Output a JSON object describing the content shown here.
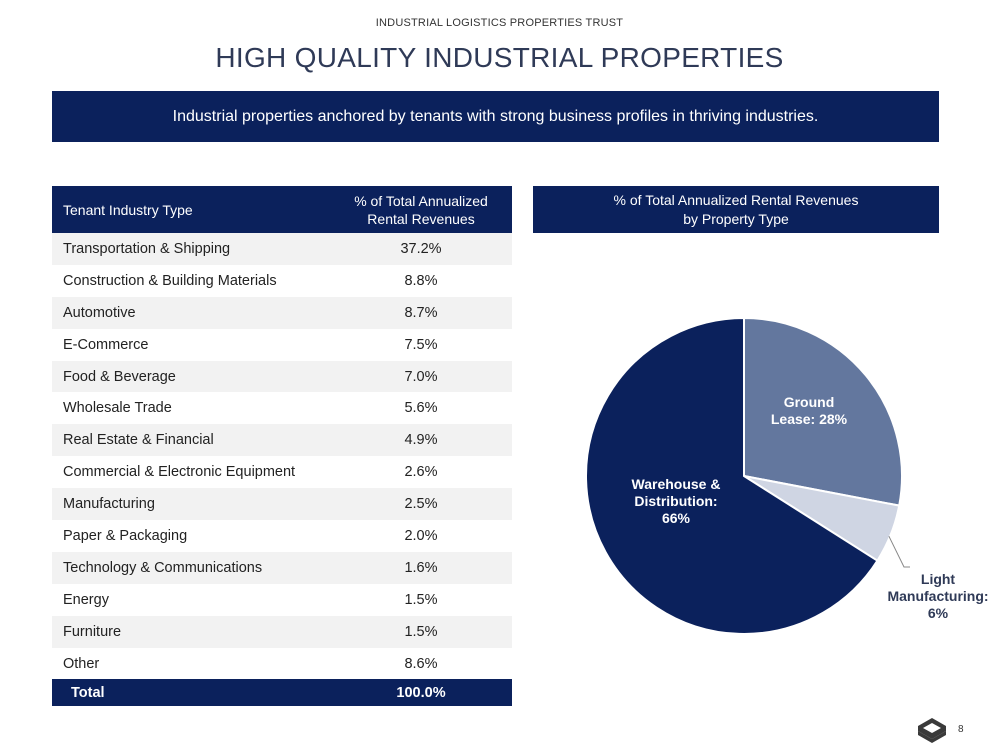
{
  "header": {
    "company": "INDUSTRIAL LOGISTICS PROPERTIES TRUST",
    "title": "HIGH QUALITY INDUSTRIAL PROPERTIES",
    "banner": "Industrial properties anchored by tenants with strong business profiles in thriving industries."
  },
  "table": {
    "col1_header": "Tenant Industry Type",
    "col2_header_line1": "% of Total Annualized",
    "col2_header_line2": "Rental Revenues",
    "rows": [
      {
        "industry": "Transportation & Shipping",
        "pct": "37.2%"
      },
      {
        "industry": "Construction & Building Materials",
        "pct": "8.8%"
      },
      {
        "industry": "Automotive",
        "pct": "8.7%"
      },
      {
        "industry": "E-Commerce",
        "pct": "7.5%"
      },
      {
        "industry": "Food & Beverage",
        "pct": "7.0%"
      },
      {
        "industry": "Wholesale Trade",
        "pct": "5.6%"
      },
      {
        "industry": "Real Estate & Financial",
        "pct": "4.9%"
      },
      {
        "industry": "Commercial & Electronic Equipment",
        "pct": "2.6%"
      },
      {
        "industry": "Manufacturing",
        "pct": "2.5%"
      },
      {
        "industry": "Paper & Packaging",
        "pct": "2.0%"
      },
      {
        "industry": "Technology & Communications",
        "pct": "1.6%"
      },
      {
        "industry": "Energy",
        "pct": "1.5%"
      },
      {
        "industry": "Furniture",
        "pct": "1.5%"
      },
      {
        "industry": "Other",
        "pct": "8.6%"
      }
    ],
    "total_label": "Total",
    "total_value": "100.0%"
  },
  "chart_head": {
    "line1": "% of Total Annualized Rental Revenues",
    "line2": "by Property Type"
  },
  "chart_data": {
    "type": "pie",
    "title": "% of Total Annualized Rental Revenues by Property Type",
    "slices": [
      {
        "name": "Ground Lease",
        "value": 28,
        "color": "#63779e",
        "label_lines": [
          "Ground",
          "Lease: 28%"
        ]
      },
      {
        "name": "Light Manufacturing",
        "value": 6,
        "color": "#cfd5e3",
        "label_lines": [
          "Light",
          "Manufacturing:",
          "6%"
        ]
      },
      {
        "name": "Warehouse & Distribution",
        "value": 66,
        "color": "#0b215c",
        "label_lines": [
          "Warehouse &",
          "Distribution:",
          "66%"
        ]
      }
    ]
  },
  "footer": {
    "page_number": "8"
  }
}
